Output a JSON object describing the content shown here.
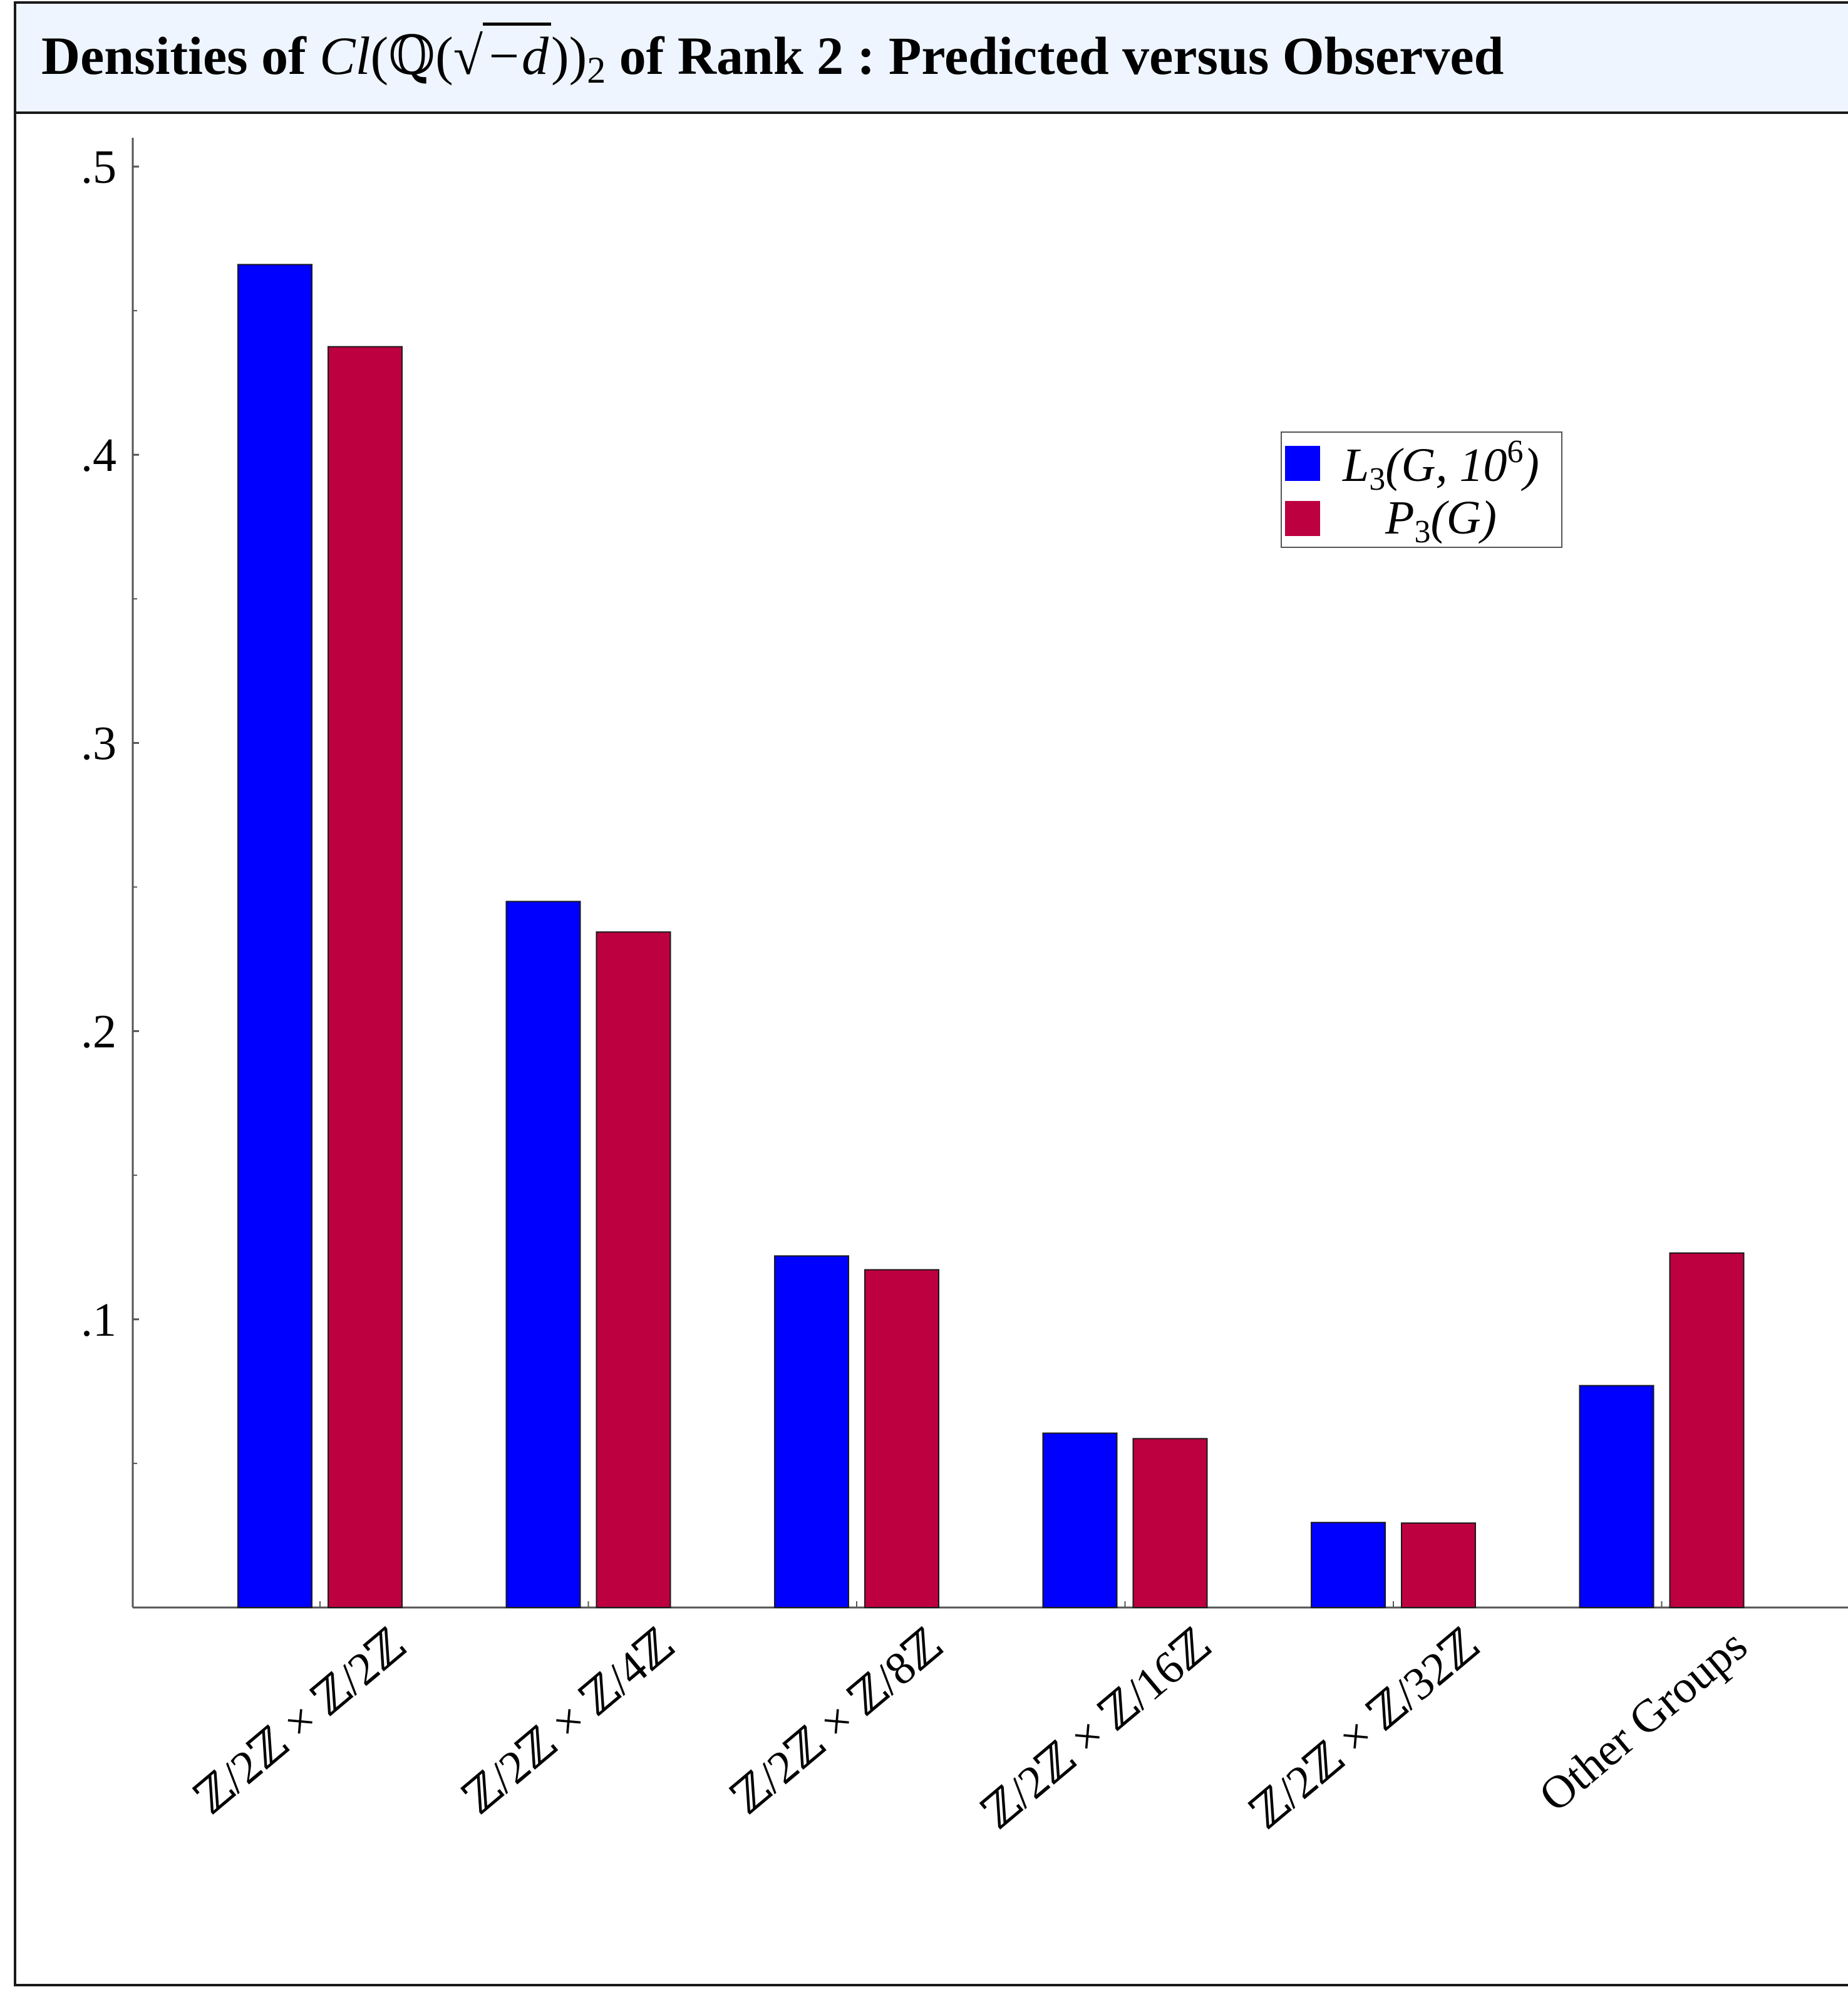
{
  "title": {
    "prefix": "Densities of ",
    "cl": "Cl",
    "field_open": "(ℚ(",
    "sqrt_body": "−d",
    "field_close": "))",
    "subscript": "2",
    "suffix": " of Rank 2 : Predicted versus Observed"
  },
  "colors": {
    "observed": "#0000ff",
    "predicted": "#bd003f",
    "axis": "#555555"
  },
  "chart_data": {
    "type": "bar",
    "categories": [
      "ℤ/2ℤ × ℤ/2ℤ",
      "ℤ/2ℤ × ℤ/4ℤ",
      "ℤ/2ℤ × ℤ/8ℤ",
      "ℤ/2ℤ × ℤ/16ℤ",
      "ℤ/2ℤ × ℤ/32ℤ",
      "Other Groups"
    ],
    "series": [
      {
        "name": "L3(G, 10^6)",
        "values": [
          0.466,
          0.245,
          0.122,
          0.0605,
          0.0295,
          0.077
        ]
      },
      {
        "name": "P3(G)",
        "values": [
          0.4375,
          0.2344,
          0.1172,
          0.0586,
          0.0293,
          0.123
        ]
      }
    ],
    "ylim": [
      0,
      0.51
    ],
    "yticks": [
      {
        "value": 0.1,
        "label": ".1"
      },
      {
        "value": 0.2,
        "label": ".2"
      },
      {
        "value": 0.3,
        "label": ".3"
      },
      {
        "value": 0.4,
        "label": ".4"
      },
      {
        "value": 0.5,
        "label": ".5"
      }
    ],
    "minor_ticks": [
      0.05,
      0.15,
      0.25,
      0.35,
      0.45
    ],
    "legend": {
      "placement": "top-right",
      "entries": [
        {
          "main": "L",
          "sub": "3",
          "args": "(G, 10",
          "sup": "6",
          "close": ")"
        },
        {
          "main": "P",
          "sub": "3",
          "args": "(G)",
          "sup": "",
          "close": ""
        }
      ]
    },
    "grid": false
  }
}
